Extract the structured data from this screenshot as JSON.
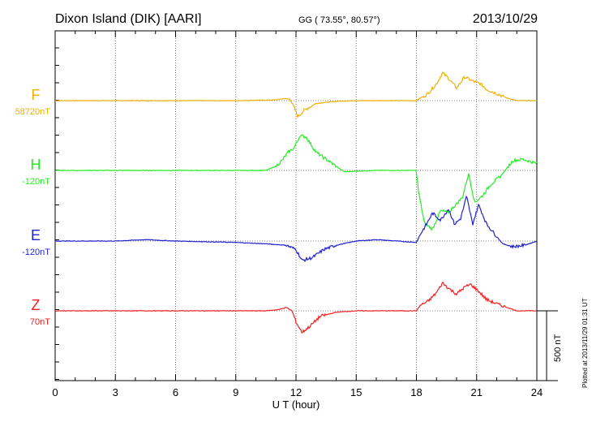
{
  "header": {
    "station": "Dixon Island (DIK)  [AARI]",
    "coords": "GG ( 73.55°,  80.57°)",
    "date": "2013/10/29"
  },
  "footer": {
    "plotted": "Plotted at 2013/11/29 01:31  UT",
    "scale_label": "500 nT"
  },
  "chart_data": {
    "type": "line",
    "xlabel": "U T (hour)",
    "xlim": [
      0,
      24
    ],
    "xticks": [
      0,
      3,
      6,
      9,
      12,
      15,
      18,
      21,
      24
    ],
    "grid": true,
    "scale_bar_nT": 500,
    "series": [
      {
        "name": "F",
        "baseline_label": "58720nT",
        "color": "#f0b000",
        "points": [
          [
            0,
            0
          ],
          [
            6,
            0
          ],
          [
            9,
            0
          ],
          [
            11,
            5
          ],
          [
            11.4,
            15
          ],
          [
            11.7,
            10
          ],
          [
            11.9,
            -50
          ],
          [
            12.1,
            -115
          ],
          [
            12.4,
            -70
          ],
          [
            13,
            -20
          ],
          [
            14,
            -5
          ],
          [
            15,
            0
          ],
          [
            17,
            0
          ],
          [
            18,
            0
          ],
          [
            18.2,
            20
          ],
          [
            18.5,
            40
          ],
          [
            19,
            120
          ],
          [
            19.3,
            200
          ],
          [
            19.6,
            160
          ],
          [
            20,
            90
          ],
          [
            20.4,
            170
          ],
          [
            20.8,
            140
          ],
          [
            21.2,
            120
          ],
          [
            21.5,
            80
          ],
          [
            22,
            50
          ],
          [
            22.5,
            20
          ],
          [
            23,
            0
          ],
          [
            24,
            0
          ]
        ]
      },
      {
        "name": "H",
        "baseline_label": "-120nT",
        "color": "#22ee22",
        "points": [
          [
            0,
            0
          ],
          [
            6,
            0
          ],
          [
            9,
            0
          ],
          [
            10.5,
            0
          ],
          [
            11,
            30
          ],
          [
            11.3,
            70
          ],
          [
            11.6,
            130
          ],
          [
            11.9,
            160
          ],
          [
            12.2,
            250
          ],
          [
            12.5,
            240
          ],
          [
            13,
            130
          ],
          [
            13.5,
            80
          ],
          [
            14,
            30
          ],
          [
            14.4,
            -10
          ],
          [
            15,
            -5
          ],
          [
            16,
            0
          ],
          [
            17,
            0
          ],
          [
            18,
            0
          ],
          [
            18.1,
            -150
          ],
          [
            18.4,
            -380
          ],
          [
            18.8,
            -420
          ],
          [
            19.2,
            -290
          ],
          [
            19.6,
            -300
          ],
          [
            20,
            -240
          ],
          [
            20.3,
            -190
          ],
          [
            20.6,
            -20
          ],
          [
            20.9,
            -230
          ],
          [
            21.3,
            -180
          ],
          [
            21.7,
            -100
          ],
          [
            22.2,
            -40
          ],
          [
            22.8,
            70
          ],
          [
            23.3,
            80
          ],
          [
            24,
            50
          ]
        ]
      },
      {
        "name": "E",
        "baseline_label": "-120nT",
        "color": "#2222cc",
        "points": [
          [
            0,
            0
          ],
          [
            3,
            0
          ],
          [
            4.5,
            10
          ],
          [
            6,
            0
          ],
          [
            9,
            -10
          ],
          [
            10.5,
            -20
          ],
          [
            11.5,
            -30
          ],
          [
            12,
            -60
          ],
          [
            12.3,
            -140
          ],
          [
            12.8,
            -120
          ],
          [
            13.4,
            -60
          ],
          [
            14,
            -30
          ],
          [
            15,
            0
          ],
          [
            16,
            10
          ],
          [
            17,
            0
          ],
          [
            18,
            -10
          ],
          [
            18.2,
            50
          ],
          [
            18.5,
            120
          ],
          [
            18.8,
            200
          ],
          [
            19.2,
            150
          ],
          [
            19.6,
            230
          ],
          [
            19.9,
            120
          ],
          [
            20.2,
            160
          ],
          [
            20.5,
            320
          ],
          [
            20.8,
            120
          ],
          [
            21.1,
            260
          ],
          [
            21.5,
            120
          ],
          [
            21.9,
            50
          ],
          [
            22.3,
            -20
          ],
          [
            22.8,
            -40
          ],
          [
            23.4,
            -30
          ],
          [
            24,
            0
          ]
        ]
      },
      {
        "name": "Z",
        "baseline_label": "70nT",
        "color": "#ee2222",
        "points": [
          [
            0,
            0
          ],
          [
            6,
            0
          ],
          [
            9,
            0
          ],
          [
            10.5,
            0
          ],
          [
            11.2,
            10
          ],
          [
            11.5,
            25
          ],
          [
            11.8,
            0
          ],
          [
            12,
            -80
          ],
          [
            12.3,
            -155
          ],
          [
            12.7,
            -110
          ],
          [
            13.2,
            -40
          ],
          [
            14,
            -10
          ],
          [
            15,
            0
          ],
          [
            17,
            0
          ],
          [
            18,
            0
          ],
          [
            18.2,
            40
          ],
          [
            18.6,
            70
          ],
          [
            19,
            130
          ],
          [
            19.3,
            200
          ],
          [
            19.7,
            150
          ],
          [
            20,
            120
          ],
          [
            20.4,
            170
          ],
          [
            20.7,
            190
          ],
          [
            21.1,
            140
          ],
          [
            21.5,
            80
          ],
          [
            22,
            50
          ],
          [
            22.6,
            20
          ],
          [
            23,
            0
          ],
          [
            24,
            0
          ]
        ]
      }
    ]
  }
}
